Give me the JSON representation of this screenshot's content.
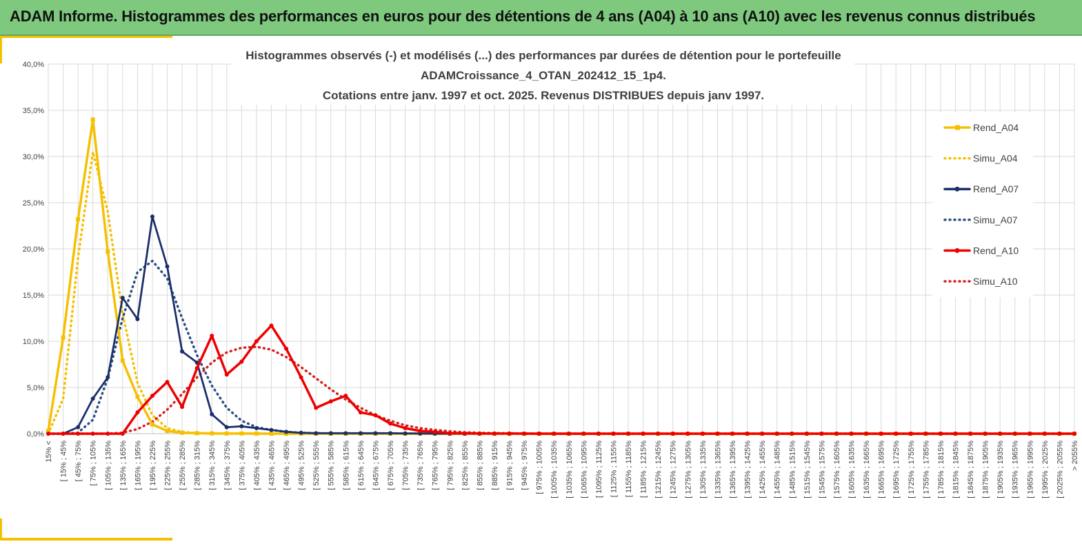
{
  "header": {
    "title": "ADAM Informe. Histogrammes des performances en euros pour des détentions de 4 ans (A04) à 10 ans (A10) avec les revenus connus distribués"
  },
  "colors": {
    "banner": "#7fc97f",
    "frame": "#f2c200",
    "A04": "#f5c000",
    "A07": "#1a2f6a",
    "A07_simu": "#2d4f82",
    "A10": "#ee0000",
    "A10_simu": "#d42020",
    "grid": "#d9d9d9"
  },
  "chart_data": {
    "type": "line",
    "title": [
      "Histogrammes observés (-) et modélisés (...) des performances par durées de détention pour le portefeuille",
      "ADAMCroissance_4_OTAN_202412_15_1p4.",
      "Cotations entre janv. 1997 et oct. 2025. Revenus DISTRIBUES depuis janv 1997."
    ],
    "xlabel": "",
    "ylabel": "",
    "ylim": [
      0,
      40
    ],
    "y_ticks": [
      "0,0%",
      "5,0%",
      "10,0%",
      "15,0%",
      "20,0%",
      "25,0%",
      "30,0%",
      "35,0%",
      "40,0%"
    ],
    "grid": true,
    "legend_position": "top-right",
    "categories": [
      "15% <",
      "[ 15% ; 45%",
      "[ 45% ; 75%",
      "[ 75% ; 105%",
      "[ 105% ; 135%",
      "[ 135% ; 165%",
      "[ 165% ; 195%",
      "[ 195% ; 225%",
      "[ 225% ; 255%",
      "[ 255% ; 285%",
      "[ 285% ; 315%",
      "[ 315% ; 345%",
      "[ 345% ; 375%",
      "[ 375% ; 405%",
      "[ 405% ; 435%",
      "[ 435% ; 465%",
      "[ 465% ; 495%",
      "[ 495% ; 525%",
      "[ 525% ; 555%",
      "[ 555% ; 585%",
      "[ 585% ; 615%",
      "[ 615% ; 645%",
      "[ 645% ; 675%",
      "[ 675% ; 705%",
      "[ 705% ; 735%",
      "[ 735% ; 765%",
      "[ 765% ; 795%",
      "[ 795% ; 825%",
      "[ 825% ; 855%",
      "[ 855% ; 885%",
      "[ 885% ; 915%",
      "[ 915% ; 945%",
      "[ 945% ; 975%",
      "[ 975% ; 1005%",
      "[ 1005% ; 1035%",
      "[ 1035% ; 1065%",
      "[ 1065% ; 1095%",
      "[ 1095% ; 1125%",
      "[ 1125% ; 1155%",
      "[ 1155% ; 1185%",
      "[ 1185% ; 1215%",
      "[ 1215% ; 1245%",
      "[ 1245% ; 1275%",
      "[ 1275% ; 1305%",
      "[ 1305% ; 1335%",
      "[ 1335% ; 1365%",
      "[ 1365% ; 1395%",
      "[ 1395% ; 1425%",
      "[ 1425% ; 1455%",
      "[ 1455% ; 1485%",
      "[ 1485% ; 1515%",
      "[ 1515% ; 1545%",
      "[ 1545% ; 1575%",
      "[ 1575% ; 1605%",
      "[ 1605% ; 1635%",
      "[ 1635% ; 1665%",
      "[ 1665% ; 1695%",
      "[ 1695% ; 1725%",
      "[ 1725% ; 1755%",
      "[ 1755% ; 1785%",
      "[ 1785% ; 1815%",
      "[ 1815% ; 1845%",
      "[ 1845% ; 1875%",
      "[ 1875% ; 1905%",
      "[ 1905% ; 1935%",
      "[ 1935% ; 1965%",
      "[ 1965% ; 1995%",
      "[ 1995% ; 2025%",
      "[ 2025% ; 2055%",
      "> 2055%"
    ],
    "series": [
      {
        "name": "Rend_A04",
        "style": "solid-square",
        "color": "#f5c000",
        "values": [
          0.3,
          10.4,
          23.2,
          34.0,
          19.7,
          7.9,
          4.0,
          1.0,
          0.3,
          0.1,
          0.05,
          0.03,
          0.02,
          0.02,
          0.01,
          0,
          0,
          0,
          0,
          0,
          0,
          0,
          0,
          0,
          0,
          0,
          0,
          0,
          0,
          0,
          0,
          0,
          0,
          0,
          0,
          0,
          0,
          0,
          0,
          0,
          0,
          0,
          0,
          0,
          0,
          0,
          0,
          0,
          0,
          0,
          0,
          0,
          0,
          0,
          0,
          0,
          0,
          0,
          0,
          0,
          0,
          0,
          0,
          0,
          0,
          0,
          0,
          0,
          0,
          0
        ]
      },
      {
        "name": "Simu_A04",
        "style": "dotted",
        "color": "#f5c000",
        "values": [
          0.0,
          3.8,
          19.0,
          30.5,
          24.0,
          13.0,
          5.5,
          2.0,
          0.6,
          0.2,
          0.05,
          0.01,
          0,
          0,
          0,
          0,
          0,
          0,
          0,
          0,
          0,
          0,
          0,
          0,
          0,
          0,
          0,
          0,
          0,
          0,
          0,
          0,
          0,
          0,
          0,
          0,
          0,
          0,
          0,
          0,
          0,
          0,
          0,
          0,
          0,
          0,
          0,
          0,
          0,
          0,
          0,
          0,
          0,
          0,
          0,
          0,
          0,
          0,
          0,
          0,
          0,
          0,
          0,
          0,
          0,
          0,
          0,
          0,
          0,
          0
        ]
      },
      {
        "name": "Rend_A07",
        "style": "solid-dot",
        "color": "#1a2f6a",
        "values": [
          0,
          0,
          0.7,
          3.8,
          6.1,
          14.7,
          12.4,
          23.5,
          18.1,
          8.9,
          7.7,
          2.1,
          0.7,
          0.8,
          0.6,
          0.4,
          0.2,
          0.1,
          0.05,
          0.05,
          0.05,
          0.05,
          0.05,
          0.05,
          0.03,
          0.02,
          0.01,
          0,
          0,
          0,
          0,
          0,
          0,
          0,
          0,
          0,
          0,
          0,
          0,
          0,
          0,
          0,
          0,
          0,
          0,
          0,
          0,
          0,
          0,
          0,
          0,
          0,
          0,
          0,
          0,
          0,
          0,
          0,
          0,
          0,
          0,
          0,
          0,
          0,
          0,
          0,
          0,
          0,
          0,
          0
        ]
      },
      {
        "name": "Simu_A07",
        "style": "dotted",
        "color": "#2d4f82",
        "values": [
          0,
          0,
          0.1,
          1.5,
          6.0,
          12.5,
          17.5,
          18.7,
          16.8,
          12.5,
          8.5,
          5.2,
          2.8,
          1.4,
          0.7,
          0.4,
          0.2,
          0.1,
          0.05,
          0.02,
          0,
          0,
          0,
          0,
          0,
          0,
          0,
          0,
          0,
          0,
          0,
          0,
          0,
          0,
          0,
          0,
          0,
          0,
          0,
          0,
          0,
          0,
          0,
          0,
          0,
          0,
          0,
          0,
          0,
          0,
          0,
          0,
          0,
          0,
          0,
          0,
          0,
          0,
          0,
          0,
          0,
          0,
          0,
          0,
          0,
          0,
          0,
          0,
          0,
          0
        ]
      },
      {
        "name": "Rend_A10",
        "style": "solid-dot",
        "color": "#ee0000",
        "values": [
          0,
          0,
          0,
          0,
          0,
          0,
          2.3,
          4.1,
          5.6,
          2.9,
          7.1,
          10.6,
          6.4,
          7.8,
          10.0,
          11.7,
          9.2,
          6.1,
          2.8,
          3.5,
          4.1,
          2.3,
          2.0,
          1.1,
          0.6,
          0.3,
          0.2,
          0.05,
          0.05,
          0.02,
          0.02,
          0.02,
          0.01,
          0,
          0,
          0,
          0,
          0,
          0,
          0,
          0,
          0,
          0,
          0,
          0,
          0,
          0,
          0,
          0,
          0,
          0,
          0,
          0,
          0,
          0,
          0,
          0,
          0,
          0,
          0,
          0,
          0,
          0,
          0,
          0,
          0,
          0,
          0,
          0,
          0
        ]
      },
      {
        "name": "Simu_A10",
        "style": "dotted",
        "color": "#d42020",
        "values": [
          0,
          0,
          0,
          0,
          0,
          0.1,
          0.5,
          1.3,
          2.6,
          4.3,
          6.1,
          7.7,
          8.8,
          9.3,
          9.4,
          9.1,
          8.3,
          7.2,
          6.0,
          4.8,
          3.7,
          2.8,
          2.0,
          1.4,
          0.9,
          0.6,
          0.4,
          0.25,
          0.15,
          0.1,
          0.06,
          0.04,
          0.02,
          0.01,
          0,
          0,
          0,
          0,
          0,
          0,
          0,
          0,
          0,
          0,
          0,
          0,
          0,
          0,
          0,
          0,
          0,
          0,
          0,
          0,
          0,
          0,
          0,
          0,
          0,
          0,
          0,
          0,
          0,
          0,
          0,
          0,
          0,
          0,
          0,
          0
        ]
      }
    ]
  }
}
